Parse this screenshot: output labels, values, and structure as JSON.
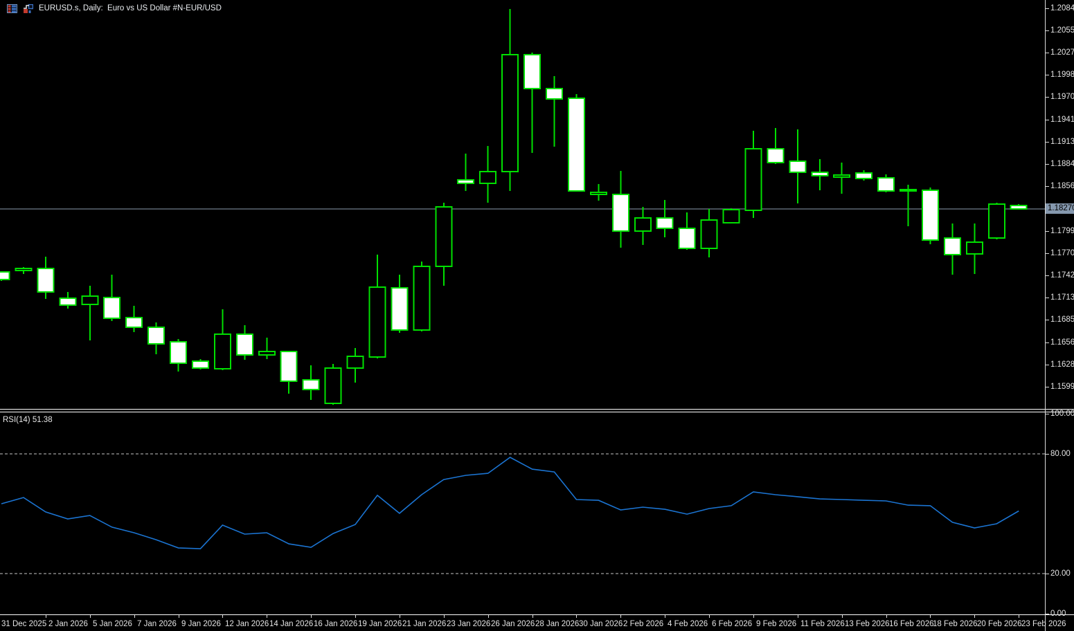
{
  "window": {
    "title": "EURUSD.s, Daily:  Euro vs US Dollar #N-EUR/USD",
    "icons": [
      "market-watch-icon",
      "chart-icon"
    ]
  },
  "indicator": {
    "label": "RSI(14) 51.38",
    "name": "RSI",
    "period": "14",
    "current_value": "51.38"
  },
  "price_axis": {
    "current_price": "1.18270",
    "labels": [
      "1.20840",
      "1.20555",
      "1.20270",
      "1.19985",
      "1.19700",
      "1.19415",
      "1.19130",
      "1.18845",
      "1.18560",
      "1.17990",
      "1.17705",
      "1.17420",
      "1.17135",
      "1.16850",
      "1.16565",
      "1.16280",
      "1.15995"
    ]
  },
  "rsi_axis": {
    "labels": [
      "100.00",
      "80.00",
      "20.00",
      "0.00"
    ]
  },
  "colors": {
    "background": "#000000",
    "candle_outline": "#00E000",
    "bull_fill": "#000000",
    "bear_fill": "#FFFFFF",
    "rsi_line": "#1B74D2",
    "price_line": "#8D9DAE",
    "price_tag_bg": "#8598AE",
    "price_tag_text": "#000000",
    "axis_text": "#E4E4E4",
    "separator": "#FFFFFF",
    "dashed_level": "#C8C8C8"
  },
  "chart_data": [
    {
      "type": "candlestick",
      "title": "EURUSD.s Daily",
      "symbol": "EURUSD.s",
      "timeframe": "Daily",
      "description": "Euro vs US Dollar #N-EUR/USD",
      "ylim": [
        1.1572,
        1.2086
      ],
      "current_price": 1.1827,
      "x_tick_labels": [
        "31 Dec 2025",
        "2 Jan 2026",
        "5 Jan 2026",
        "7 Jan 2026",
        "9 Jan 2026",
        "12 Jan 2026",
        "14 Jan 2026",
        "16 Jan 2026",
        "19 Jan 2026",
        "21 Jan 2026",
        "23 Jan 2026",
        "26 Jan 2026",
        "28 Jan 2026",
        "30 Jan 2026",
        "2 Feb 2026",
        "4 Feb 2026",
        "6 Feb 2026",
        "9 Feb 2026",
        "11 Feb 2026",
        "13 Feb 2026",
        "16 Feb 2026",
        "18 Feb 2026",
        "20 Feb 2026",
        "23 Feb 2026"
      ],
      "x_tick_every_n_bars": 2,
      "candles": [
        {
          "o": 1.17465,
          "h": 1.17474,
          "l": 1.1735,
          "c": 1.17367
        },
        {
          "o": 1.17482,
          "h": 1.17527,
          "l": 1.17438,
          "c": 1.17509
        },
        {
          "o": 1.17509,
          "h": 1.17659,
          "l": 1.1712,
          "c": 1.17208
        },
        {
          "o": 1.17128,
          "h": 1.17208,
          "l": 1.16996,
          "c": 1.1704
        },
        {
          "o": 1.17049,
          "h": 1.17288,
          "l": 1.16589,
          "c": 1.17155
        },
        {
          "o": 1.17137,
          "h": 1.17429,
          "l": 1.16836,
          "c": 1.16872
        },
        {
          "o": 1.16881,
          "h": 1.17031,
          "l": 1.16695,
          "c": 1.16757
        },
        {
          "o": 1.16757,
          "h": 1.16819,
          "l": 1.16412,
          "c": 1.16544
        },
        {
          "o": 1.16571,
          "h": 1.16606,
          "l": 1.1619,
          "c": 1.16296
        },
        {
          "o": 1.16323,
          "h": 1.1635,
          "l": 1.16217,
          "c": 1.16235
        },
        {
          "o": 1.16226,
          "h": 1.16987,
          "l": 1.16208,
          "c": 1.16668
        },
        {
          "o": 1.16668,
          "h": 1.16783,
          "l": 1.16341,
          "c": 1.16403
        },
        {
          "o": 1.16403,
          "h": 1.16624,
          "l": 1.1635,
          "c": 1.16447
        },
        {
          "o": 1.16447,
          "h": 1.16455,
          "l": 1.15907,
          "c": 1.16066
        },
        {
          "o": 1.16084,
          "h": 1.1627,
          "l": 1.15827,
          "c": 1.1596
        },
        {
          "o": 1.15783,
          "h": 1.16288,
          "l": 1.15765,
          "c": 1.16235
        },
        {
          "o": 1.16235,
          "h": 1.16491,
          "l": 1.16049,
          "c": 1.16385
        },
        {
          "o": 1.16376,
          "h": 1.17686,
          "l": 1.16358,
          "c": 1.1727
        },
        {
          "o": 1.17261,
          "h": 1.17429,
          "l": 1.16686,
          "c": 1.16721
        },
        {
          "o": 1.16721,
          "h": 1.17597,
          "l": 1.16704,
          "c": 1.17535
        },
        {
          "o": 1.17535,
          "h": 1.1835,
          "l": 1.17288,
          "c": 1.18297
        },
        {
          "o": 1.18642,
          "h": 1.18978,
          "l": 1.185,
          "c": 1.18597
        },
        {
          "o": 1.18597,
          "h": 1.19075,
          "l": 1.1835,
          "c": 1.18748
        },
        {
          "o": 1.18748,
          "h": 1.20828,
          "l": 1.185,
          "c": 1.20243
        },
        {
          "o": 1.20243,
          "h": 1.2027,
          "l": 1.18987,
          "c": 1.1981
        },
        {
          "o": 1.1981,
          "h": 1.19969,
          "l": 1.19067,
          "c": 1.19677
        },
        {
          "o": 1.19686,
          "h": 1.19739,
          "l": 1.185,
          "c": 1.185
        },
        {
          "o": 1.18456,
          "h": 1.18589,
          "l": 1.18376,
          "c": 1.18482
        },
        {
          "o": 1.18456,
          "h": 1.18757,
          "l": 1.17774,
          "c": 1.17987
        },
        {
          "o": 1.17987,
          "h": 1.18297,
          "l": 1.1781,
          "c": 1.18155
        },
        {
          "o": 1.18155,
          "h": 1.18385,
          "l": 1.17907,
          "c": 1.18022
        },
        {
          "o": 1.18022,
          "h": 1.18226,
          "l": 1.17748,
          "c": 1.17766
        },
        {
          "o": 1.17766,
          "h": 1.1827,
          "l": 1.1765,
          "c": 1.18128
        },
        {
          "o": 1.18093,
          "h": 1.18279,
          "l": 1.18093,
          "c": 1.18261
        },
        {
          "o": 1.18252,
          "h": 1.1927,
          "l": 1.18155,
          "c": 1.1904
        },
        {
          "o": 1.1904,
          "h": 1.19305,
          "l": 1.18845,
          "c": 1.18863
        },
        {
          "o": 1.18881,
          "h": 1.19288,
          "l": 1.18341,
          "c": 1.18739
        },
        {
          "o": 1.18739,
          "h": 1.18907,
          "l": 1.18509,
          "c": 1.18695
        },
        {
          "o": 1.18677,
          "h": 1.18863,
          "l": 1.18465,
          "c": 1.18704
        },
        {
          "o": 1.1873,
          "h": 1.18766,
          "l": 1.18633,
          "c": 1.18659
        },
        {
          "o": 1.18668,
          "h": 1.18713,
          "l": 1.18482,
          "c": 1.185
        },
        {
          "o": 1.185,
          "h": 1.1858,
          "l": 1.18049,
          "c": 1.18518
        },
        {
          "o": 1.18509,
          "h": 1.18544,
          "l": 1.17819,
          "c": 1.17872
        },
        {
          "o": 1.17898,
          "h": 1.18084,
          "l": 1.17429,
          "c": 1.17686
        },
        {
          "o": 1.17695,
          "h": 1.18084,
          "l": 1.17438,
          "c": 1.17845
        },
        {
          "o": 1.17898,
          "h": 1.1835,
          "l": 1.17881,
          "c": 1.18332
        },
        {
          "o": 1.18314,
          "h": 1.18332,
          "l": 1.18261,
          "c": 1.1827
        }
      ]
    },
    {
      "type": "line",
      "name": "RSI(14)",
      "ylim": [
        0,
        100
      ],
      "levels_dashed": [
        80,
        20
      ],
      "current": 51.38,
      "values": [
        55.0,
        58.1,
        50.9,
        47.4,
        49.1,
        43.3,
        40.5,
        37.0,
        32.9,
        32.5,
        44.3,
        39.8,
        40.5,
        34.9,
        33.2,
        40.1,
        44.6,
        59.2,
        50.2,
        59.5,
        67.1,
        69.2,
        70.2,
        78.2,
        72.3,
        70.9,
        57.1,
        56.7,
        51.9,
        53.3,
        52.2,
        49.8,
        52.6,
        54.0,
        60.9,
        59.5,
        58.5,
        57.4,
        57.1,
        56.7,
        56.4,
        54.3,
        54.0,
        45.7,
        42.9,
        45.0,
        51.38
      ]
    }
  ]
}
